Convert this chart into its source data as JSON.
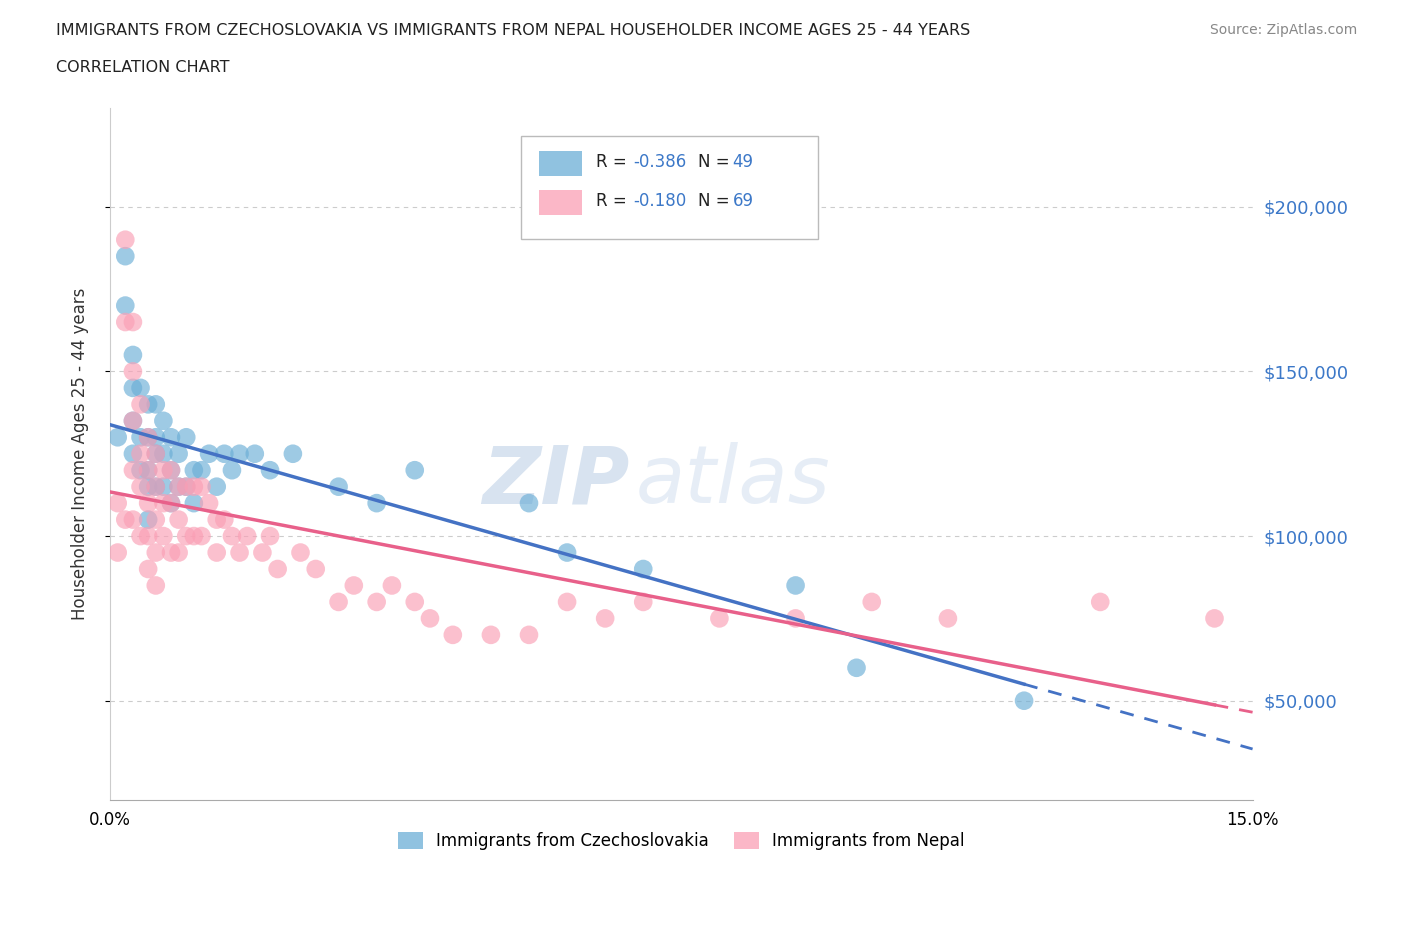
{
  "title_line1": "IMMIGRANTS FROM CZECHOSLOVAKIA VS IMMIGRANTS FROM NEPAL HOUSEHOLDER INCOME AGES 25 - 44 YEARS",
  "title_line2": "CORRELATION CHART",
  "source_text": "Source: ZipAtlas.com",
  "ylabel": "Householder Income Ages 25 - 44 years",
  "xlim": [
    0.0,
    0.15
  ],
  "ylim": [
    20000,
    230000
  ],
  "yticks": [
    50000,
    100000,
    150000,
    200000
  ],
  "ytick_labels_right": [
    "$50,000",
    "$100,000",
    "$150,000",
    "$200,000"
  ],
  "xticks": [
    0.0,
    0.015,
    0.03,
    0.045,
    0.06,
    0.075,
    0.09,
    0.105,
    0.12,
    0.135,
    0.15
  ],
  "xtick_labels": [
    "0.0%",
    "",
    "",
    "",
    "",
    "",
    "",
    "",
    "",
    "",
    "15.0%"
  ],
  "color_czech": "#6baed6",
  "color_nepal": "#fa9fb5",
  "line_color_czech": "#4472c4",
  "line_color_nepal": "#e8608a",
  "legend_label1": "R = -0.386   N = 49",
  "legend_label2": "R = -0.180   N = 69",
  "watermark_zip": "ZIP",
  "watermark_atlas": "atlas",
  "grid_color": "#cccccc",
  "czech_x": [
    0.001,
    0.002,
    0.002,
    0.003,
    0.003,
    0.003,
    0.003,
    0.004,
    0.004,
    0.004,
    0.005,
    0.005,
    0.005,
    0.005,
    0.005,
    0.006,
    0.006,
    0.006,
    0.006,
    0.007,
    0.007,
    0.007,
    0.008,
    0.008,
    0.008,
    0.009,
    0.009,
    0.01,
    0.01,
    0.011,
    0.011,
    0.012,
    0.013,
    0.014,
    0.015,
    0.016,
    0.017,
    0.019,
    0.021,
    0.024,
    0.03,
    0.035,
    0.04,
    0.055,
    0.06,
    0.07,
    0.09,
    0.098,
    0.12
  ],
  "czech_y": [
    130000,
    185000,
    170000,
    155000,
    145000,
    135000,
    125000,
    145000,
    130000,
    120000,
    140000,
    130000,
    120000,
    115000,
    105000,
    140000,
    130000,
    125000,
    115000,
    135000,
    125000,
    115000,
    130000,
    120000,
    110000,
    125000,
    115000,
    130000,
    115000,
    120000,
    110000,
    120000,
    125000,
    115000,
    125000,
    120000,
    125000,
    125000,
    120000,
    125000,
    115000,
    110000,
    120000,
    110000,
    95000,
    90000,
    85000,
    60000,
    50000
  ],
  "nepal_x": [
    0.001,
    0.001,
    0.002,
    0.002,
    0.002,
    0.003,
    0.003,
    0.003,
    0.003,
    0.003,
    0.004,
    0.004,
    0.004,
    0.004,
    0.005,
    0.005,
    0.005,
    0.005,
    0.005,
    0.006,
    0.006,
    0.006,
    0.006,
    0.006,
    0.007,
    0.007,
    0.007,
    0.008,
    0.008,
    0.008,
    0.009,
    0.009,
    0.009,
    0.01,
    0.01,
    0.011,
    0.011,
    0.012,
    0.012,
    0.013,
    0.014,
    0.014,
    0.015,
    0.016,
    0.017,
    0.018,
    0.02,
    0.021,
    0.022,
    0.025,
    0.027,
    0.03,
    0.032,
    0.035,
    0.037,
    0.04,
    0.042,
    0.045,
    0.05,
    0.055,
    0.06,
    0.065,
    0.07,
    0.08,
    0.09,
    0.1,
    0.11,
    0.13,
    0.145
  ],
  "nepal_y": [
    110000,
    95000,
    190000,
    165000,
    105000,
    165000,
    150000,
    135000,
    120000,
    105000,
    140000,
    125000,
    115000,
    100000,
    130000,
    120000,
    110000,
    100000,
    90000,
    125000,
    115000,
    105000,
    95000,
    85000,
    120000,
    110000,
    100000,
    120000,
    110000,
    95000,
    115000,
    105000,
    95000,
    115000,
    100000,
    115000,
    100000,
    115000,
    100000,
    110000,
    105000,
    95000,
    105000,
    100000,
    95000,
    100000,
    95000,
    100000,
    90000,
    95000,
    90000,
    80000,
    85000,
    80000,
    85000,
    80000,
    75000,
    70000,
    70000,
    70000,
    80000,
    75000,
    80000,
    75000,
    75000,
    80000,
    75000,
    80000,
    75000
  ]
}
